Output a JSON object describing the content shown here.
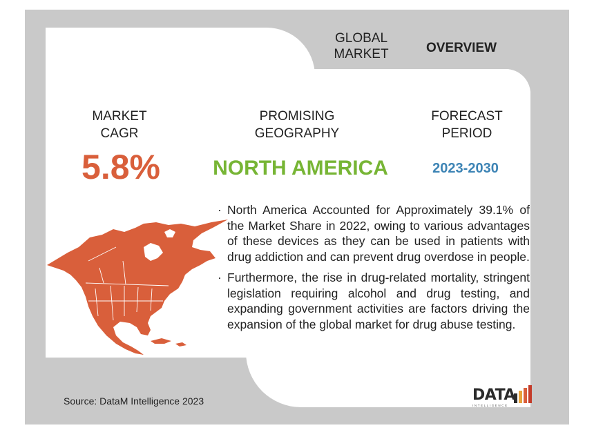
{
  "header": {
    "global_market": "GLOBAL\nMARKET",
    "overview": "OVERVIEW"
  },
  "stats": {
    "cagr_label": "MARKET\nCAGR",
    "cagr_value": "5.8%",
    "geo_label": "PROMISING\nGEOGRAPHY",
    "geo_value": "NORTH AMERICA",
    "forecast_label": "FORECAST\nPERIOD",
    "forecast_value": "2023-2030"
  },
  "bullets": [
    "North America Accounted for Approximately 39.1% of the Market Share in 2022, owing to various advantages of these devices as they can be used in patients with drug addiction and can prevent drug overdose in people.",
    "Furthermore, the rise in drug-related mortality, stringent legislation requiring alcohol and drug testing, and expanding government activities are factors driving the expansion of the global market for drug abuse testing."
  ],
  "source": "Source: DataM Intelligence 2023",
  "logo": {
    "text": "DATA",
    "subtext": "INTELLIGENCE"
  },
  "colors": {
    "background": "#c9c9c9",
    "cagr": "#d95f3b",
    "geography": "#77b535",
    "forecast": "#3d84b5",
    "map": "#d95f3b"
  },
  "icons": {
    "map": "north-america-map",
    "logo": "datam-logo"
  }
}
